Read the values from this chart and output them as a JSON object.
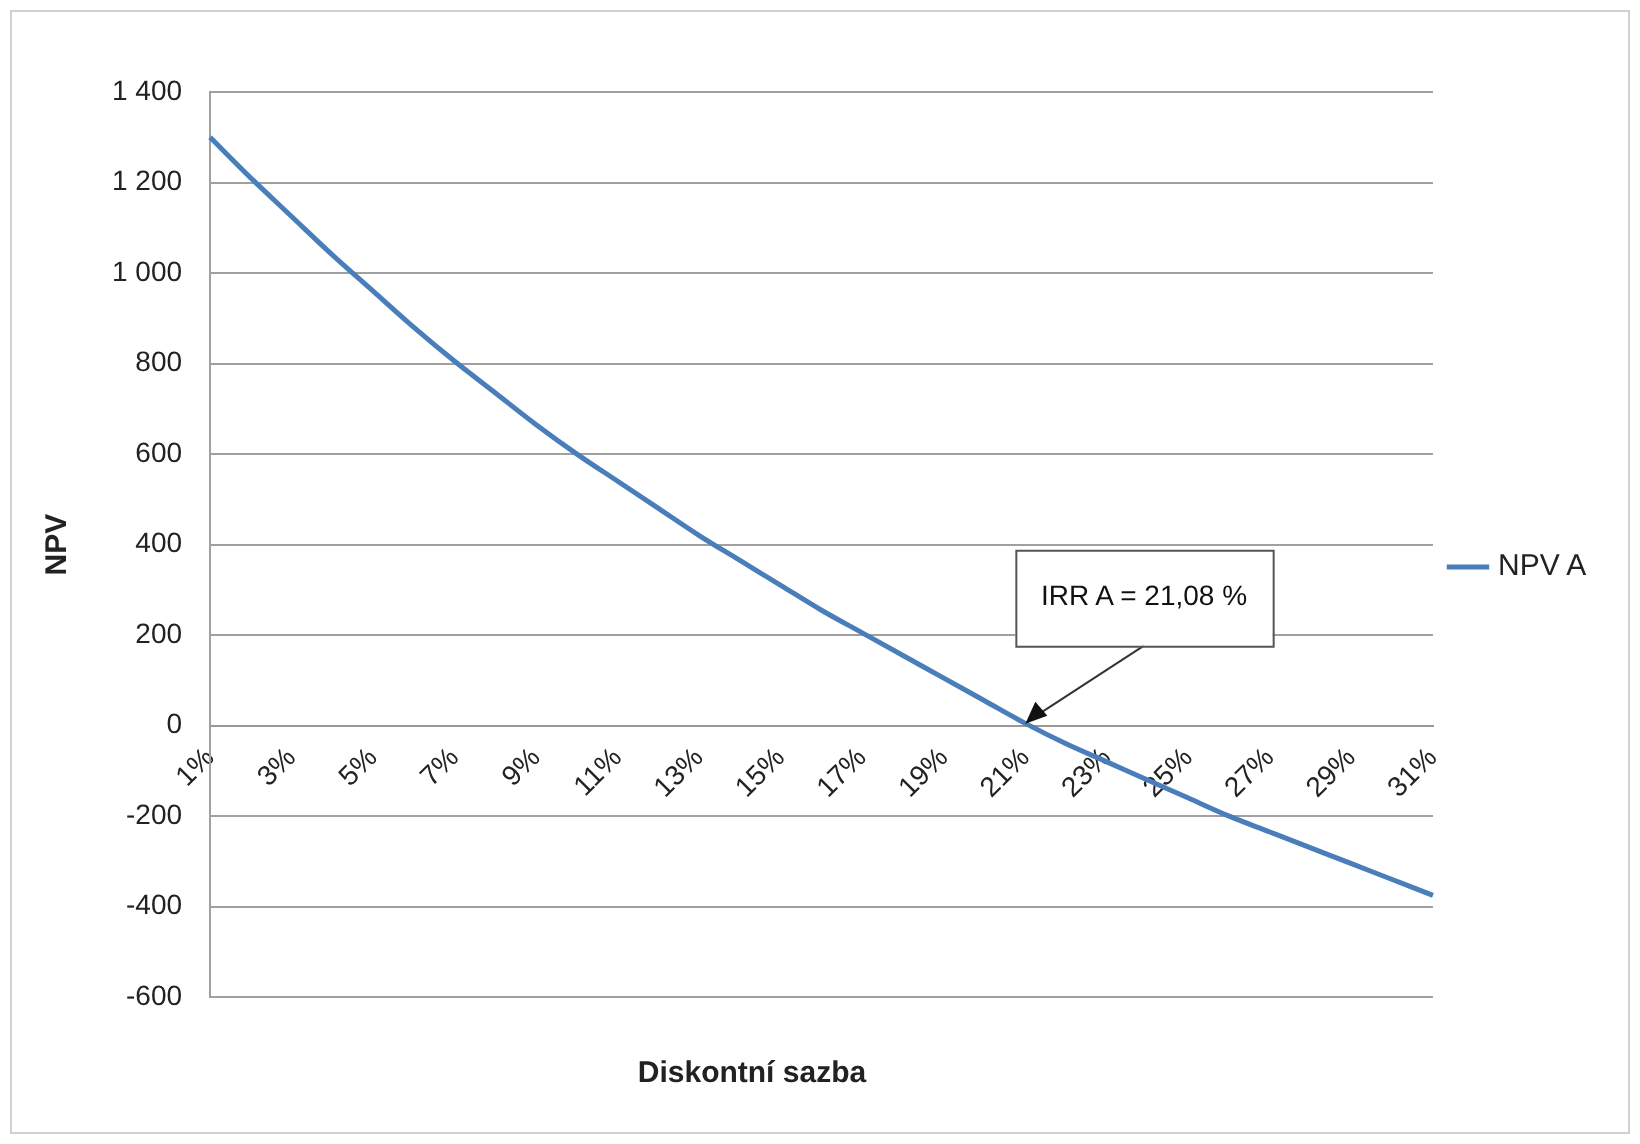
{
  "chart_data": {
    "type": "line",
    "xlabel": "Diskontní sazba",
    "ylabel": "NPV",
    "categories": [
      "1%",
      null,
      "3%",
      null,
      "5%",
      null,
      "7%",
      null,
      "9%",
      null,
      "11%",
      null,
      "13%",
      null,
      "15%",
      null,
      "17%",
      null,
      "19%",
      null,
      "21%",
      null,
      "23%",
      null,
      "25%",
      null,
      "27%",
      null,
      "29%",
      null,
      "31%"
    ],
    "series": [
      {
        "name": "NPV A",
        "color": "#4a7ebb",
        "values": [
          1300,
          1210,
          1125,
          1040,
          960,
          880,
          805,
          735,
          665,
          600,
          540,
          480,
          420,
          365,
          310,
          255,
          205,
          155,
          105,
          55,
          5,
          -40,
          -80,
          -120,
          -160,
          -200,
          -235,
          -270,
          -305,
          -340,
          -375
        ]
      }
    ],
    "ylim": [
      -600,
      1400
    ],
    "yticks": [
      -600,
      -400,
      -200,
      0,
      200,
      400,
      600,
      800,
      {
        "value": 1000,
        "label": "1 000"
      },
      {
        "value": 1200,
        "label": "1 200"
      },
      {
        "value": 1400,
        "label": "1 400"
      }
    ],
    "grid": "y",
    "legend": "right",
    "marker": "none",
    "line_style": "solid",
    "annotations": [
      {
        "text": "IRR A = 21,08 %",
        "x": "21%",
        "y": 0
      }
    ]
  }
}
